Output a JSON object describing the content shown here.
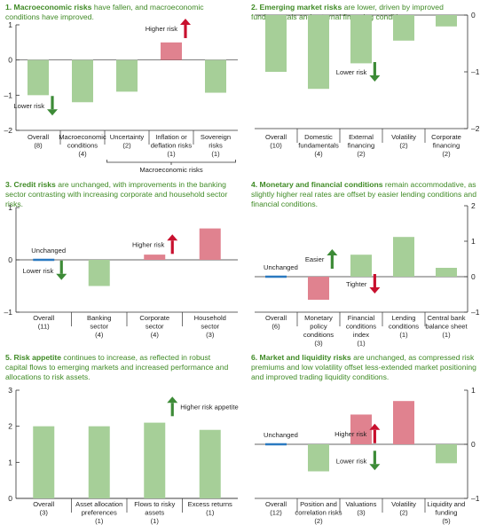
{
  "colors": {
    "bar_green": "#a6cf98",
    "bar_red": "#e0828f",
    "unchanged_blue": "#2a79c0",
    "arrow_green": "#3d8b37",
    "arrow_red": "#c8102e",
    "title_green": "#3f8a25",
    "axis": "#333333",
    "text": "#222222"
  },
  "chart_data": [
    {
      "type": "bar",
      "panel": "1",
      "title_bold": "1. Macroeconomic risks",
      "title_rest": " have fallen, and macroeconomic conditions have improved.",
      "ylim": [
        -2,
        1
      ],
      "yticks": [
        "1",
        "0",
        "–1",
        "–2"
      ],
      "yaxis_side": "left",
      "categories": [
        {
          "label": [
            "Overall",
            "(8)"
          ],
          "value": -1.0,
          "color": "green",
          "unchanged": false
        },
        {
          "label": [
            "Macroeconomic",
            "conditions",
            "(4)"
          ],
          "value": -1.2,
          "color": "green",
          "unchanged": false
        },
        {
          "label": [
            "Uncertainty",
            "(2)"
          ],
          "value": -0.9,
          "color": "green",
          "unchanged": false
        },
        {
          "label": [
            "Inflation or",
            "deflation risks",
            "(1)"
          ],
          "value": 0.5,
          "color": "red",
          "unchanged": false
        },
        {
          "label": [
            "Sovereign",
            "risks",
            "(1)"
          ],
          "value": -0.93,
          "color": "green",
          "unchanged": false
        }
      ],
      "annotations": [
        {
          "type": "arrow-up",
          "text": "Higher risk",
          "category_index": 3,
          "level": 0.9
        },
        {
          "type": "arrow-down",
          "text": "Lower risk",
          "category_index": 0,
          "level": -1.3
        }
      ],
      "bracket": {
        "from": 2,
        "to": 4,
        "text": "Macroeconomic risks"
      }
    },
    {
      "type": "bar",
      "panel": "2",
      "title_bold": "2. Emerging market risks",
      "title_rest": " are lower, driven by improved fundamentals and external financing conditions.",
      "ylim": [
        -2,
        0
      ],
      "yticks": [
        "0",
        "–1",
        "–2"
      ],
      "yaxis_side": "right",
      "categories": [
        {
          "label": [
            "Overall",
            "(10)"
          ],
          "value": -1.0,
          "color": "green",
          "unchanged": false
        },
        {
          "label": [
            "Domestic",
            "fundamentals",
            "(4)"
          ],
          "value": -1.3,
          "color": "green",
          "unchanged": false
        },
        {
          "label": [
            "External",
            "financing",
            "(2)"
          ],
          "value": -0.85,
          "color": "green",
          "unchanged": false
        },
        {
          "label": [
            "Volatility",
            "(2)"
          ],
          "value": -0.45,
          "color": "green",
          "unchanged": false
        },
        {
          "label": [
            "Corporate",
            "financing",
            "(2)"
          ],
          "value": -0.2,
          "color": "green",
          "unchanged": false
        }
      ],
      "annotations": [
        {
          "type": "arrow-down",
          "text": "Lower risk",
          "category_index": 2,
          "level": -1.0
        }
      ]
    },
    {
      "type": "bar",
      "panel": "3",
      "title_bold": "3. Credit risks",
      "title_rest": " are unchanged, with improvements in the banking sector contrasting with increasing corporate and household sector risks.",
      "ylim": [
        -1,
        1
      ],
      "yticks": [
        "1",
        "0",
        "–1"
      ],
      "yaxis_side": "left",
      "categories": [
        {
          "label": [
            "Overall",
            "(11)"
          ],
          "value": 0,
          "color": "green",
          "unchanged": true
        },
        {
          "label": [
            "Banking",
            "sector",
            "(4)"
          ],
          "value": -0.5,
          "color": "green",
          "unchanged": false
        },
        {
          "label": [
            "Corporate",
            "sector",
            "(4)"
          ],
          "value": 0.1,
          "color": "red",
          "unchanged": false
        },
        {
          "label": [
            "Household",
            "sector",
            "(3)"
          ],
          "value": 0.6,
          "color": "red",
          "unchanged": false
        }
      ],
      "annotations": [
        {
          "type": "label",
          "text": "Unchanged",
          "category_index": 0,
          "level": 0.3
        },
        {
          "type": "arrow-down",
          "text": "Lower risk",
          "category_index": 0,
          "level": -0.2
        },
        {
          "type": "arrow-up",
          "text": "Higher risk",
          "category_index": 2,
          "level": 0.3
        }
      ]
    },
    {
      "type": "bar",
      "panel": "4",
      "title_bold": "4. Monetary and financial conditions",
      "title_rest": " remain accommodative, as slightly higher real rates are offset by easier lending conditions and financial conditions.",
      "ylim": [
        -1,
        2
      ],
      "yticks": [
        "2",
        "1",
        "0",
        "–1"
      ],
      "yaxis_side": "right",
      "categories": [
        {
          "label": [
            "Overall",
            "(6)"
          ],
          "value": 0,
          "color": "green",
          "unchanged": true
        },
        {
          "label": [
            "Monetary",
            "policy",
            "conditions",
            "(3)"
          ],
          "value": -0.65,
          "color": "red",
          "unchanged": false
        },
        {
          "label": [
            "Financial",
            "conditions",
            "index",
            "(1)"
          ],
          "value": 0.62,
          "color": "green",
          "unchanged": false
        },
        {
          "label": [
            "Lending",
            "conditions",
            "(1)"
          ],
          "value": 1.12,
          "color": "green",
          "unchanged": false
        },
        {
          "label": [
            "Central bank",
            "balance sheet",
            "(1)"
          ],
          "value": 0.25,
          "color": "green",
          "unchanged": false
        }
      ],
      "annotations": [
        {
          "type": "label",
          "text": "Unchanged",
          "category_index": 0,
          "level": 0.3
        },
        {
          "type": "arrow-up",
          "text": "Easier",
          "category_index": 1,
          "level": 0.5
        },
        {
          "type": "arrow-down",
          "text": "Tighter",
          "category_index": 2,
          "level": -0.2
        }
      ]
    },
    {
      "type": "bar",
      "panel": "5",
      "title_bold": "5. Risk appetite",
      "title_rest": " continues to increase, as reflected in robust capital flows to emerging markets and increased performance and allocations to risk assets.",
      "ylim": [
        0,
        3
      ],
      "yticks": [
        "3",
        "2",
        "1",
        "0"
      ],
      "yaxis_side": "left",
      "categories": [
        {
          "label": [
            "Overall",
            "(3)"
          ],
          "value": 2.0,
          "color": "green",
          "unchanged": false
        },
        {
          "label": [
            "Asset allocation",
            "preferences",
            "(1)"
          ],
          "value": 2.0,
          "color": "green",
          "unchanged": false
        },
        {
          "label": [
            "Flows to risky",
            "assets",
            "(1)"
          ],
          "value": 2.1,
          "color": "green",
          "unchanged": false
        },
        {
          "label": [
            "Excess returns",
            "(1)"
          ],
          "value": 1.9,
          "color": "green",
          "unchanged": false
        }
      ],
      "annotations": [
        {
          "type": "arrow-up",
          "text": "Higher risk appetite",
          "category_index": 2,
          "level": 2.55
        }
      ]
    },
    {
      "type": "bar",
      "panel": "6",
      "title_bold": "6. Market and liquidity risks",
      "title_rest": " are unchanged, as compressed risk premiums and low volatility offset less-extended market positioning and improved trading liquidity conditions.",
      "ylim": [
        -1,
        1
      ],
      "yticks": [
        "1",
        "0",
        "–1"
      ],
      "yaxis_side": "right",
      "categories": [
        {
          "label": [
            "Overall",
            "(12)"
          ],
          "value": 0,
          "color": "green",
          "unchanged": true
        },
        {
          "label": [
            "Position and",
            "correlation risks",
            "(2)"
          ],
          "value": -0.5,
          "color": "green",
          "unchanged": false
        },
        {
          "label": [
            "Valuations",
            "(3)"
          ],
          "value": 0.55,
          "color": "red",
          "unchanged": false
        },
        {
          "label": [
            "Volatility",
            "(2)"
          ],
          "value": 0.8,
          "color": "red",
          "unchanged": false
        },
        {
          "label": [
            "Liquidity and",
            "funding",
            "(5)"
          ],
          "value": -0.35,
          "color": "green",
          "unchanged": false
        }
      ],
      "annotations": [
        {
          "type": "label",
          "text": "Unchanged",
          "category_index": 0,
          "level": 0.3
        },
        {
          "type": "arrow-up",
          "text": "Higher risk",
          "category_index": 2,
          "level": 0.2
        },
        {
          "type": "arrow-down",
          "text": "Lower risk",
          "category_index": 2,
          "level": -0.3
        }
      ]
    }
  ]
}
